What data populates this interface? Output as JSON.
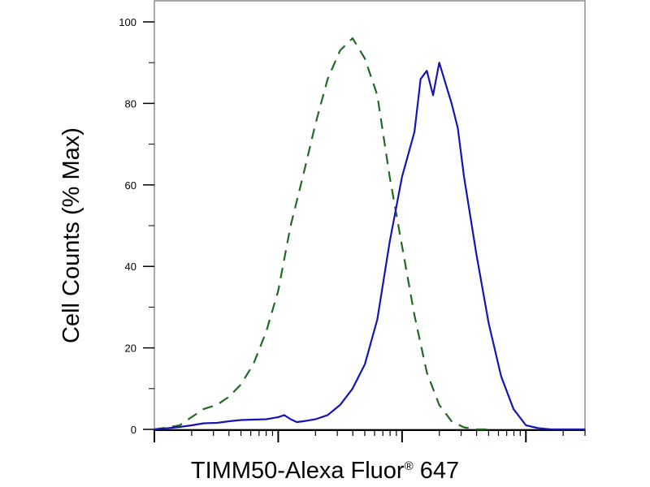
{
  "chart_data": {
    "type": "line",
    "title": "",
    "xlabel": "TIMM50-Alexa Fluor",
    "xlabel_mark": "®",
    "xlabel_suffix": "647",
    "ylabel": "Cell Counts (% Max)",
    "xscale": "log",
    "xlim": [
      1,
      3000
    ],
    "ylim": [
      0,
      100
    ],
    "yticks": [
      0,
      20,
      40,
      60,
      80,
      100
    ],
    "x_major_ticks": [
      1,
      10,
      100,
      1000
    ],
    "grid": false,
    "legend": "none",
    "series": [
      {
        "style": "dashed",
        "color": "#1f6b1f",
        "points": [
          [
            1.0,
            0
          ],
          [
            1.3,
            0.5
          ],
          [
            1.6,
            1
          ],
          [
            2.0,
            3
          ],
          [
            2.5,
            5
          ],
          [
            3.2,
            6
          ],
          [
            4.0,
            8
          ],
          [
            5.0,
            11
          ],
          [
            6.3,
            16
          ],
          [
            8.0,
            24
          ],
          [
            10.0,
            34
          ],
          [
            12.6,
            50
          ],
          [
            15.8,
            62
          ],
          [
            20.0,
            75
          ],
          [
            25.1,
            86
          ],
          [
            31.6,
            93
          ],
          [
            39.8,
            96
          ],
          [
            50.1,
            91
          ],
          [
            63.1,
            82
          ],
          [
            79.4,
            62
          ],
          [
            100.0,
            45
          ],
          [
            125.9,
            28
          ],
          [
            158.5,
            14
          ],
          [
            199.5,
            6
          ],
          [
            251.2,
            2
          ],
          [
            316.2,
            0.5
          ],
          [
            398.1,
            0
          ],
          [
            500.0,
            0
          ]
        ]
      },
      {
        "style": "solid",
        "color": "#1515b5",
        "points": [
          [
            1.0,
            0
          ],
          [
            1.3,
            0.3
          ],
          [
            1.6,
            0.6
          ],
          [
            2.0,
            1
          ],
          [
            2.5,
            1.5
          ],
          [
            3.2,
            1.6
          ],
          [
            4.0,
            2
          ],
          [
            5.0,
            2.3
          ],
          [
            6.3,
            2.4
          ],
          [
            8.0,
            2.5
          ],
          [
            10.0,
            3
          ],
          [
            11.2,
            3.5
          ],
          [
            12.6,
            2.5
          ],
          [
            14.1,
            1.8
          ],
          [
            16.0,
            2
          ],
          [
            20.0,
            2.5
          ],
          [
            25.1,
            3.5
          ],
          [
            31.6,
            6
          ],
          [
            39.8,
            10
          ],
          [
            50.1,
            16
          ],
          [
            63.1,
            27
          ],
          [
            79.4,
            46
          ],
          [
            100.0,
            62
          ],
          [
            125.9,
            73
          ],
          [
            141.3,
            86
          ],
          [
            158.5,
            88
          ],
          [
            178.0,
            82
          ],
          [
            199.5,
            90
          ],
          [
            223.9,
            85
          ],
          [
            251.2,
            80
          ],
          [
            281.8,
            74
          ],
          [
            316.2,
            62
          ],
          [
            398.1,
            43
          ],
          [
            501.2,
            26
          ],
          [
            631.0,
            13
          ],
          [
            794.3,
            5
          ],
          [
            1000.0,
            1
          ],
          [
            1258.9,
            0.3
          ],
          [
            1584.9,
            0
          ],
          [
            3000.0,
            0
          ]
        ]
      }
    ]
  }
}
